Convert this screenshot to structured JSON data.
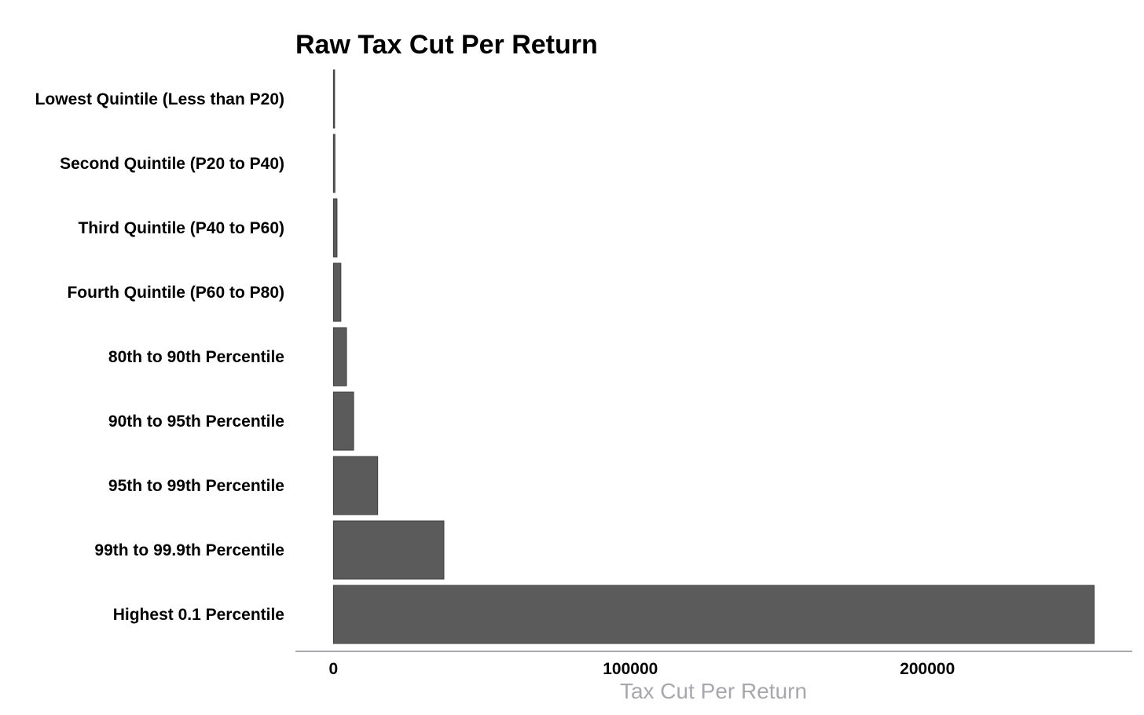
{
  "chart_data": {
    "type": "bar",
    "orientation": "horizontal",
    "title": "Raw Tax Cut Per Return",
    "xlabel": "Tax Cut Per Return",
    "ylabel": "",
    "categories": [
      "Lowest Quintile (Less than P20)",
      "Second Quintile (P20 to P40)",
      "Third Quintile (P40 to P60)",
      "Fourth Quintile (P60 to P80)",
      "80th to 90th Percentile",
      "90th to 95th Percentile",
      "95th to 99th Percentile",
      "99th to 99.9th Percentile",
      "Highest 0.1 Percentile"
    ],
    "values": [
      60,
      500,
      1200,
      2500,
      4400,
      6800,
      14900,
      37200,
      256200
    ],
    "xlim": [
      -12800,
      269000
    ],
    "xticks": [
      0,
      100000,
      200000
    ],
    "xtick_labels": [
      "0",
      "100000",
      "200000"
    ],
    "grid": false,
    "legend": "none",
    "colors": {
      "bar_fill": "#5b5b5b",
      "bar_stroke": "#3f3f3f",
      "axis_line": "#a7a7ad",
      "axis_title": "#a7a7ad",
      "text": "#000000"
    }
  }
}
